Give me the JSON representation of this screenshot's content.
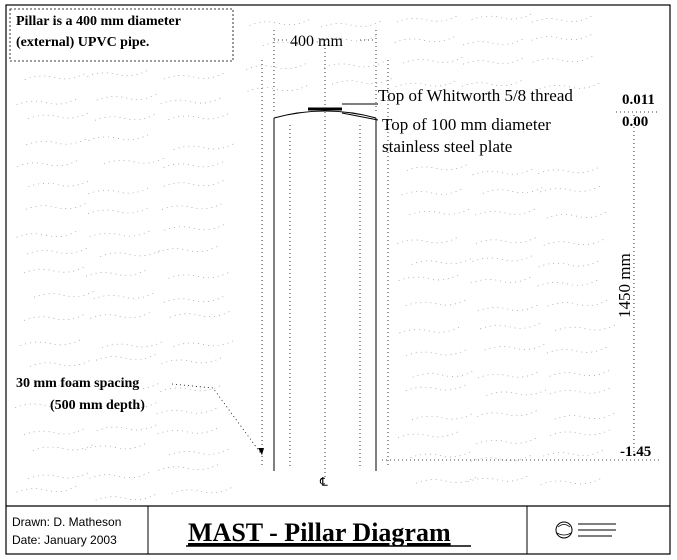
{
  "notes": {
    "pillar_line1": "Pillar is a 400 mm diameter",
    "pillar_line2": "(external) UPVC pipe.",
    "foam_line1": "30 mm foam spacing",
    "foam_line2": "(500 mm depth)"
  },
  "dimensions": {
    "width_label": "400 mm",
    "height_label": "1450 mm"
  },
  "callouts": {
    "thread": "Top of Whitworth 5/8 thread",
    "plate_line1": "Top of 100 mm diameter",
    "plate_line2": "stainless steel plate"
  },
  "levels": {
    "thread_level": "0.011",
    "plate_level": "0.00",
    "bottom_level": "-1.45"
  },
  "centerline_symbol": "℄",
  "title_block": {
    "drawn": "Drawn: D. Matheson",
    "date": "Date:  January 2003",
    "title": "MAST - Pillar Diagram",
    "logo_lines": [
      "",
      "",
      ""
    ]
  }
}
